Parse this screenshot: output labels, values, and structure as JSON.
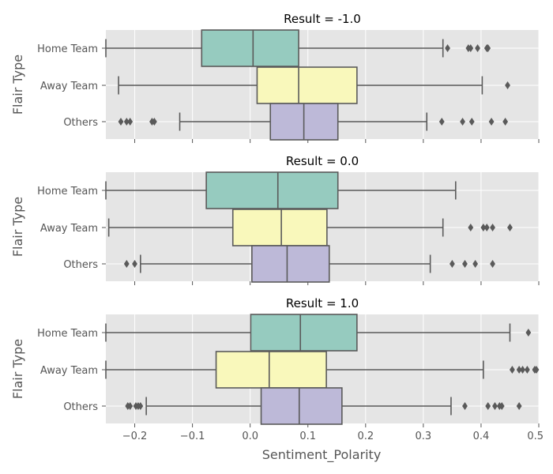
{
  "chart_data": {
    "type": "box",
    "xlabel": "Sentiment_Polarity",
    "ylabel": "Flair Type",
    "xlim": [
      -0.25,
      0.5
    ],
    "xticks": [
      -0.2,
      -0.1,
      0.0,
      0.1,
      0.2,
      0.3,
      0.4,
      0.5
    ],
    "xtick_labels": [
      "−0.2",
      "−0.1",
      "0.0",
      "0.1",
      "0.2",
      "0.3",
      "0.4",
      "0.5"
    ],
    "categories": [
      "Home Team",
      "Away Team",
      "Others"
    ],
    "colors": [
      "#96cbbf",
      "#f9f8bb",
      "#bdb9d8"
    ],
    "grid": true,
    "panels": [
      {
        "title": "Result = -1.0",
        "boxes": [
          {
            "category": "Home Team",
            "whislo": -0.25,
            "q1": -0.084,
            "med": 0.005,
            "q3": 0.084,
            "whishi": 0.334,
            "fliers": [
              0.342,
              0.378,
              0.382,
              0.394,
              0.41,
              0.412
            ]
          },
          {
            "category": "Away Team",
            "whislo": -0.228,
            "q1": 0.012,
            "med": 0.084,
            "q3": 0.185,
            "whishi": 0.402,
            "fliers": [
              0.446
            ]
          },
          {
            "category": "Others",
            "whislo": -0.122,
            "q1": 0.035,
            "med": 0.093,
            "q3": 0.152,
            "whishi": 0.306,
            "fliers": [
              -0.224,
              -0.214,
              -0.208,
              -0.17,
              -0.166,
              0.332,
              0.368,
              0.384,
              0.418,
              0.442
            ]
          }
        ]
      },
      {
        "title": "Result = 0.0",
        "boxes": [
          {
            "category": "Home Team",
            "whislo": -0.25,
            "q1": -0.076,
            "med": 0.048,
            "q3": 0.152,
            "whishi": 0.356,
            "fliers": []
          },
          {
            "category": "Away Team",
            "whislo": -0.245,
            "q1": -0.03,
            "med": 0.054,
            "q3": 0.133,
            "whishi": 0.334,
            "fliers": [
              0.382,
              0.404,
              0.41,
              0.42,
              0.45
            ]
          },
          {
            "category": "Others",
            "whislo": -0.19,
            "q1": 0.003,
            "med": 0.064,
            "q3": 0.137,
            "whishi": 0.312,
            "fliers": [
              -0.214,
              -0.2,
              0.35,
              0.372,
              0.39,
              0.42
            ]
          }
        ]
      },
      {
        "title": "Result = 1.0",
        "boxes": [
          {
            "category": "Home Team",
            "whislo": -0.25,
            "q1": 0.001,
            "med": 0.087,
            "q3": 0.185,
            "whishi": 0.45,
            "fliers": [
              0.482
            ]
          },
          {
            "category": "Away Team",
            "whislo": -0.25,
            "q1": -0.059,
            "med": 0.033,
            "q3": 0.132,
            "whishi": 0.404,
            "fliers": [
              0.454,
              0.466,
              0.472,
              0.48,
              0.493,
              0.5
            ]
          },
          {
            "category": "Others",
            "whislo": -0.18,
            "q1": 0.019,
            "med": 0.085,
            "q3": 0.159,
            "whishi": 0.348,
            "fliers": [
              -0.212,
              -0.208,
              -0.198,
              -0.194,
              -0.19,
              0.372,
              0.412,
              0.424,
              0.432,
              0.436,
              0.466
            ]
          }
        ]
      }
    ]
  }
}
